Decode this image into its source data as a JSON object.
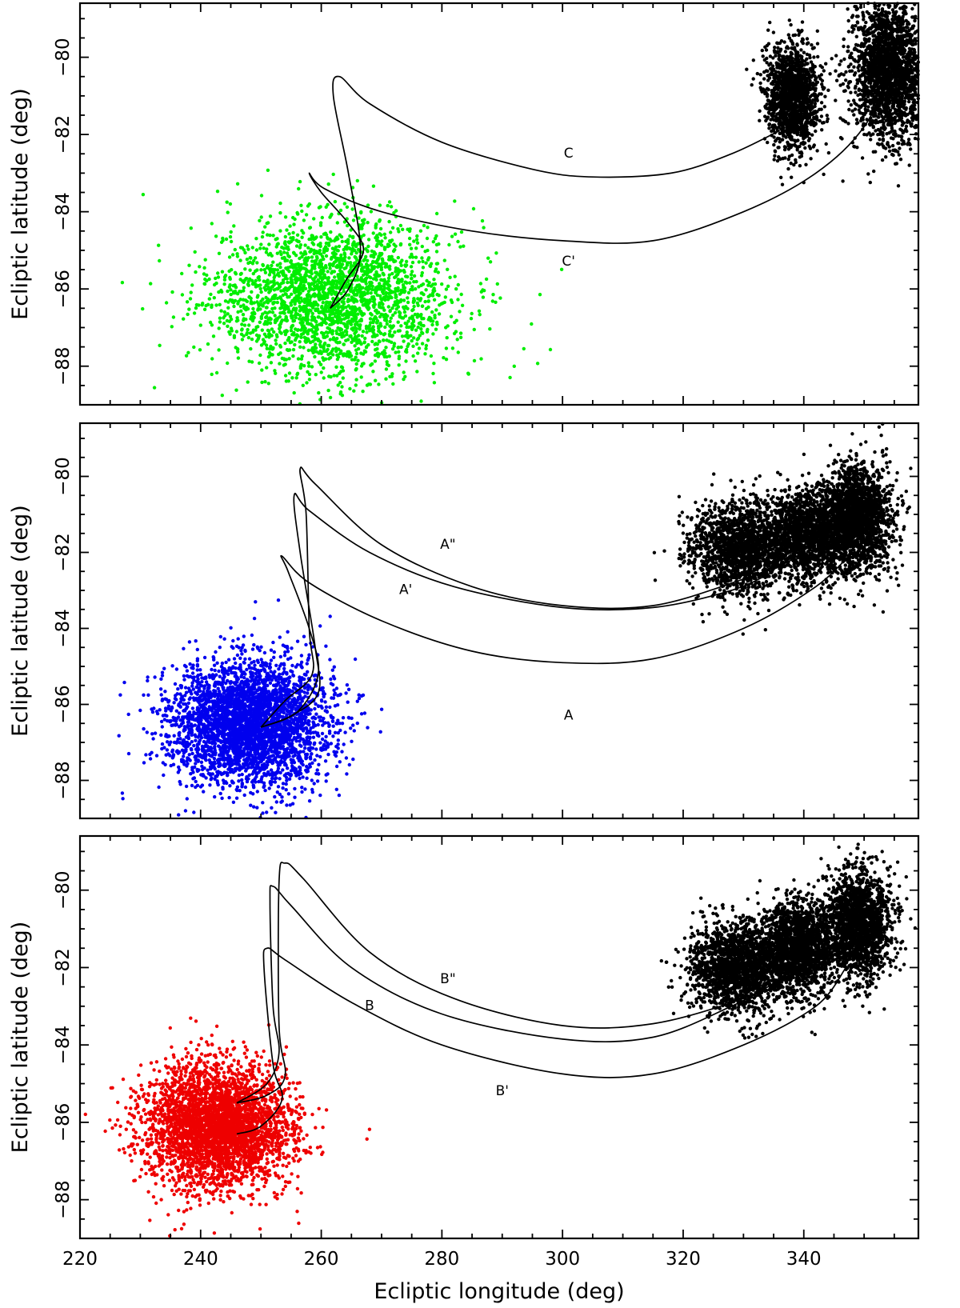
{
  "chart_data": [
    {
      "type": "scatter",
      "panel": "top",
      "xlabel": "",
      "ylabel": "Ecliptic latitude (deg)",
      "xlim": [
        220,
        359
      ],
      "ylim": [
        -89.0,
        -78.6
      ],
      "xticks": [
        220,
        240,
        260,
        280,
        300,
        320,
        340
      ],
      "yticks": [
        -80,
        -82,
        -84,
        -86,
        -88
      ],
      "tick_labels_x": [],
      "tick_labels_y": [
        "−80",
        "−82",
        "−84",
        "−86",
        "−88"
      ],
      "clouds": [
        {
          "color": "#00ee00",
          "kind": "source",
          "center": [
            262,
            -86.2
          ],
          "spread": [
            10,
            1.0
          ],
          "n": 2600
        },
        {
          "color": "#000000",
          "kind": "target",
          "center": [
            338,
            -81.0
          ],
          "spread": [
            2.2,
            0.65
          ],
          "n": 1500
        },
        {
          "color": "#000000",
          "kind": "target",
          "center": [
            354,
            -80.3
          ],
          "spread": [
            3.0,
            0.9
          ],
          "n": 2200
        }
      ],
      "curves": [
        {
          "label": "C",
          "points": [
            [
              261.5,
              -86.5
            ],
            [
              264.5,
              -86.0
            ],
            [
              266.5,
              -85.0
            ],
            [
              264.5,
              -83.0
            ],
            [
              262.0,
              -81.0
            ],
            [
              263.0,
              -80.5
            ],
            [
              268,
              -81.2
            ],
            [
              280,
              -82.2
            ],
            [
              295,
              -82.9
            ],
            [
              305,
              -83.1
            ],
            [
              318,
              -83.0
            ],
            [
              328,
              -82.5
            ],
            [
              336,
              -81.9
            ]
          ],
          "label_at": [
            301,
            -82.6
          ]
        },
        {
          "label": "C'",
          "points": [
            [
              261.5,
              -86.5
            ],
            [
              264.0,
              -85.8
            ],
            [
              267.0,
              -85.0
            ],
            [
              264.5,
              -84.3
            ],
            [
              260.0,
              -83.5
            ],
            [
              258.0,
              -83.0
            ],
            [
              260.5,
              -83.4
            ],
            [
              270,
              -84.0
            ],
            [
              285,
              -84.5
            ],
            [
              300,
              -84.75
            ],
            [
              315,
              -84.75
            ],
            [
              330,
              -84.0
            ],
            [
              342,
              -83.0
            ],
            [
              350,
              -81.8
            ],
            [
              355,
              -80.2
            ]
          ],
          "label_at": [
            301,
            -85.4
          ]
        }
      ],
      "curve_labels": [
        "C",
        "C'"
      ]
    },
    {
      "type": "scatter",
      "panel": "middle",
      "xlabel": "",
      "ylabel": "Ecliptic latitude (deg)",
      "xlim": [
        220,
        359
      ],
      "ylim": [
        -89.0,
        -78.6
      ],
      "xticks": [
        220,
        240,
        260,
        280,
        300,
        320,
        340
      ],
      "yticks": [
        -80,
        -82,
        -84,
        -86,
        -88
      ],
      "tick_labels_x": [],
      "tick_labels_y": [
        "−80",
        "−82",
        "−84",
        "−86",
        "−88"
      ],
      "clouds": [
        {
          "color": "#0000ee",
          "kind": "source",
          "center": [
            248,
            -86.5
          ],
          "spread": [
            6.5,
            0.8
          ],
          "n": 3600
        },
        {
          "color": "#000000",
          "kind": "target",
          "center": [
            330,
            -81.9
          ],
          "spread": [
            4.5,
            0.6
          ],
          "n": 1800
        },
        {
          "color": "#000000",
          "kind": "target",
          "center": [
            341,
            -81.5
          ],
          "spread": [
            3.5,
            0.6
          ],
          "n": 1500
        },
        {
          "color": "#000000",
          "kind": "target",
          "center": [
            349,
            -81.1
          ],
          "spread": [
            3.0,
            0.7
          ],
          "n": 1800
        }
      ],
      "curves": [
        {
          "label": "A",
          "points": [
            [
              250,
              -86.6
            ],
            [
              256,
              -86.2
            ],
            [
              259.5,
              -85.2
            ],
            [
              258.0,
              -84.0
            ],
            [
              254.5,
              -82.5
            ],
            [
              253.5,
              -82.1
            ],
            [
              258,
              -82.8
            ],
            [
              270,
              -83.8
            ],
            [
              285,
              -84.6
            ],
            [
              300,
              -84.9
            ],
            [
              315,
              -84.8
            ],
            [
              330,
              -84.0
            ],
            [
              342,
              -82.9
            ],
            [
              348,
              -82.0
            ]
          ],
          "label_at": [
            301,
            -86.4
          ]
        },
        {
          "label": "A'",
          "points": [
            [
              250,
              -86.6
            ],
            [
              255,
              -86.3
            ],
            [
              259.5,
              -85.7
            ],
            [
              259.0,
              -84.5
            ],
            [
              256.5,
              -82.0
            ],
            [
              255.5,
              -80.5
            ],
            [
              258,
              -80.9
            ],
            [
              268,
              -82.0
            ],
            [
              282,
              -82.9
            ],
            [
              300,
              -83.45
            ],
            [
              315,
              -83.45
            ],
            [
              328,
              -83.0
            ],
            [
              335,
              -82.5
            ]
          ],
          "label_at": [
            274,
            -83.1
          ]
        },
        {
          "label": "A\"",
          "points": [
            [
              250,
              -86.6
            ],
            [
              254,
              -85.9
            ],
            [
              258.5,
              -85.2
            ],
            [
              258.0,
              -84.0
            ],
            [
              257.5,
              -81.0
            ],
            [
              256.5,
              -79.8
            ],
            [
              259,
              -80.2
            ],
            [
              270,
              -81.8
            ],
            [
              285,
              -82.9
            ],
            [
              300,
              -83.4
            ],
            [
              315,
              -83.4
            ],
            [
              330,
              -82.7
            ],
            [
              338,
              -82.2
            ]
          ],
          "label_at": [
            281,
            -81.9
          ]
        }
      ],
      "curve_labels": [
        "A",
        "A'",
        "A\""
      ]
    },
    {
      "type": "scatter",
      "panel": "bottom",
      "xlabel": "Ecliptic longitude (deg)",
      "ylabel": "Ecliptic latitude (deg)",
      "xlim": [
        220,
        359
      ],
      "ylim": [
        -89.0,
        -78.6
      ],
      "xticks": [
        220,
        240,
        260,
        280,
        300,
        320,
        340
      ],
      "yticks": [
        -80,
        -82,
        -84,
        -86,
        -88
      ],
      "tick_labels_x": [
        "220",
        "240",
        "260",
        "280",
        "300",
        "320",
        "340"
      ],
      "tick_labels_y": [
        "−80",
        "−82",
        "−84",
        "−86",
        "−88"
      ],
      "clouds": [
        {
          "color": "#ee0000",
          "kind": "source",
          "center": [
            243,
            -86.1
          ],
          "spread": [
            6.0,
            0.8
          ],
          "n": 3600
        },
        {
          "color": "#000000",
          "kind": "target",
          "center": [
            329,
            -82.0
          ],
          "spread": [
            4.0,
            0.6
          ],
          "n": 1800
        },
        {
          "color": "#000000",
          "kind": "target",
          "center": [
            339,
            -81.5
          ],
          "spread": [
            3.0,
            0.6
          ],
          "n": 1700
        },
        {
          "color": "#000000",
          "kind": "target",
          "center": [
            349,
            -80.9
          ],
          "spread": [
            2.8,
            0.7
          ],
          "n": 1800
        }
      ],
      "curves": [
        {
          "label": "B",
          "points": [
            [
              246,
              -85.5
            ],
            [
              251,
              -85.0
            ],
            [
              253.0,
              -84.2
            ],
            [
              252.0,
              -83.0
            ],
            [
              251.5,
              -80.3
            ],
            [
              252.0,
              -79.9
            ],
            [
              255,
              -80.4
            ],
            [
              265,
              -82.0
            ],
            [
              280,
              -83.2
            ],
            [
              300,
              -83.85
            ],
            [
              315,
              -83.8
            ],
            [
              328,
              -83.0
            ],
            [
              334,
              -82.5
            ]
          ],
          "label_at": [
            268,
            -83.1
          ]
        },
        {
          "label": "B'",
          "points": [
            [
              246,
              -86.3
            ],
            [
              250,
              -86.1
            ],
            [
              253.5,
              -85.4
            ],
            [
              252.0,
              -84.5
            ],
            [
              250.5,
              -82.0
            ],
            [
              251,
              -81.5
            ],
            [
              254,
              -81.8
            ],
            [
              265,
              -82.9
            ],
            [
              280,
              -84.0
            ],
            [
              300,
              -84.75
            ],
            [
              315,
              -84.75
            ],
            [
              330,
              -84.0
            ],
            [
              342,
              -83.0
            ],
            [
              347,
              -82.0
            ]
          ],
          "label_at": [
            290,
            -85.3
          ]
        },
        {
          "label": "B\"",
          "points": [
            [
              246,
              -85.5
            ],
            [
              251,
              -85.3
            ],
            [
              254.0,
              -84.8
            ],
            [
              253.0,
              -83.5
            ],
            [
              253.0,
              -79.8
            ],
            [
              254,
              -79.3
            ],
            [
              257,
              -79.7
            ],
            [
              268,
              -81.6
            ],
            [
              282,
              -82.8
            ],
            [
              300,
              -83.5
            ],
            [
              315,
              -83.45
            ],
            [
              330,
              -82.8
            ],
            [
              336,
              -82.3
            ]
          ],
          "label_at": [
            281,
            -82.4
          ]
        }
      ],
      "curve_labels": [
        "B",
        "B'",
        "B\""
      ]
    }
  ]
}
